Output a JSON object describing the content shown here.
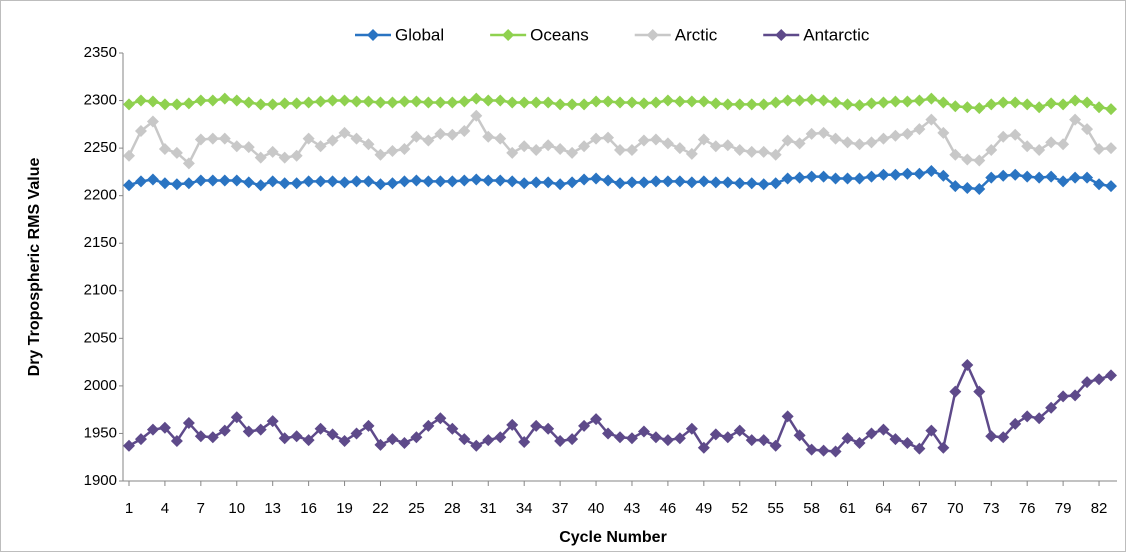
{
  "chart_data": {
    "type": "line",
    "x_label": "Cycle Number",
    "y_label": "Dry Tropospheric RMS Value",
    "x": [
      1,
      2,
      3,
      4,
      5,
      6,
      7,
      8,
      9,
      10,
      11,
      12,
      13,
      14,
      15,
      16,
      17,
      18,
      19,
      20,
      21,
      22,
      23,
      24,
      25,
      26,
      27,
      28,
      29,
      30,
      31,
      32,
      33,
      34,
      35,
      36,
      37,
      38,
      39,
      40,
      41,
      42,
      43,
      44,
      45,
      46,
      47,
      48,
      49,
      50,
      51,
      52,
      53,
      54,
      55,
      56,
      57,
      58,
      59,
      60,
      61,
      62,
      63,
      64,
      65,
      66,
      67,
      68,
      69,
      70,
      71,
      72,
      73,
      74,
      75,
      76,
      77,
      78,
      79,
      80,
      81,
      82,
      83
    ],
    "xlim": [
      0.5,
      83.5
    ],
    "xticks": [
      1,
      4,
      7,
      10,
      13,
      16,
      19,
      22,
      25,
      28,
      31,
      34,
      37,
      40,
      43,
      46,
      49,
      52,
      55,
      58,
      61,
      64,
      67,
      70,
      73,
      76,
      79,
      82
    ],
    "ylim": [
      1900,
      2350
    ],
    "yticks": [
      1900,
      1950,
      2000,
      2050,
      2100,
      2150,
      2200,
      2250,
      2300,
      2350
    ],
    "grid": false,
    "legend": "top",
    "series": [
      {
        "name": "Global",
        "color": "#2a74c2",
        "values": [
          2211,
          2215,
          2217,
          2213,
          2212,
          2213,
          2216,
          2216,
          2216,
          2216,
          2214,
          2211,
          2215,
          2213,
          2213,
          2215,
          2215,
          2215,
          2214,
          2215,
          2215,
          2212,
          2213,
          2215,
          2216,
          2215,
          2215,
          2215,
          2216,
          2217,
          2216,
          2216,
          2215,
          2213,
          2214,
          2214,
          2212,
          2214,
          2217,
          2218,
          2216,
          2213,
          2214,
          2214,
          2215,
          2215,
          2215,
          2214,
          2215,
          2214,
          2214,
          2213,
          2213,
          2212,
          2213,
          2218,
          2219,
          2220,
          2220,
          2218,
          2218,
          2218,
          2220,
          2222,
          2222,
          2223,
          2223,
          2226,
          2221,
          2210,
          2208,
          2207,
          2219,
          2221,
          2222,
          2220,
          2219,
          2220,
          2215,
          2219,
          2219,
          2212,
          2210
        ]
      },
      {
        "name": "Oceans",
        "color": "#8fd14f",
        "values": [
          2296,
          2300,
          2299,
          2296,
          2296,
          2297,
          2300,
          2300,
          2302,
          2300,
          2298,
          2296,
          2296,
          2297,
          2297,
          2298,
          2299,
          2300,
          2300,
          2299,
          2299,
          2298,
          2298,
          2299,
          2299,
          2298,
          2298,
          2298,
          2299,
          2302,
          2300,
          2300,
          2298,
          2298,
          2298,
          2298,
          2296,
          2296,
          2296,
          2299,
          2299,
          2298,
          2298,
          2297,
          2298,
          2300,
          2299,
          2299,
          2299,
          2297,
          2296,
          2296,
          2296,
          2296,
          2298,
          2300,
          2300,
          2301,
          2300,
          2298,
          2296,
          2295,
          2297,
          2298,
          2299,
          2299,
          2300,
          2302,
          2298,
          2294,
          2293,
          2292,
          2296,
          2298,
          2298,
          2296,
          2293,
          2297,
          2296,
          2300,
          2298,
          2293,
          2291
        ]
      },
      {
        "name": "Arctic",
        "color": "#c8c8c8",
        "values": [
          2242,
          2268,
          2278,
          2249,
          2245,
          2234,
          2259,
          2260,
          2260,
          2252,
          2251,
          2240,
          2246,
          2240,
          2242,
          2260,
          2252,
          2258,
          2266,
          2260,
          2254,
          2243,
          2247,
          2249,
          2262,
          2258,
          2265,
          2264,
          2268,
          2284,
          2262,
          2260,
          2245,
          2252,
          2248,
          2253,
          2249,
          2245,
          2252,
          2260,
          2261,
          2248,
          2248,
          2258,
          2259,
          2255,
          2250,
          2244,
          2259,
          2252,
          2253,
          2248,
          2246,
          2246,
          2243,
          2258,
          2255,
          2265,
          2266,
          2260,
          2256,
          2254,
          2256,
          2260,
          2263,
          2265,
          2270,
          2280,
          2266,
          2243,
          2238,
          2237,
          2248,
          2262,
          2264,
          2252,
          2248,
          2256,
          2254,
          2280,
          2270,
          2249,
          2250
        ]
      },
      {
        "name": "Antarctic",
        "color": "#5e4a8a",
        "values": [
          1937,
          1944,
          1954,
          1956,
          1942,
          1961,
          1947,
          1946,
          1953,
          1967,
          1952,
          1954,
          1963,
          1945,
          1947,
          1943,
          1955,
          1949,
          1942,
          1950,
          1958,
          1938,
          1944,
          1940,
          1946,
          1958,
          1966,
          1955,
          1944,
          1937,
          1943,
          1946,
          1959,
          1941,
          1958,
          1955,
          1942,
          1944,
          1958,
          1965,
          1950,
          1946,
          1945,
          1952,
          1946,
          1943,
          1945,
          1955,
          1935,
          1949,
          1946,
          1953,
          1943,
          1943,
          1937,
          1968,
          1948,
          1933,
          1932,
          1931,
          1945,
          1940,
          1950,
          1954,
          1944,
          1940,
          1934,
          1953,
          1935,
          1994,
          2022,
          1994,
          1947,
          1946,
          1960,
          1968,
          1966,
          1977,
          1989,
          1990,
          2004,
          2007,
          2011
        ]
      }
    ]
  }
}
